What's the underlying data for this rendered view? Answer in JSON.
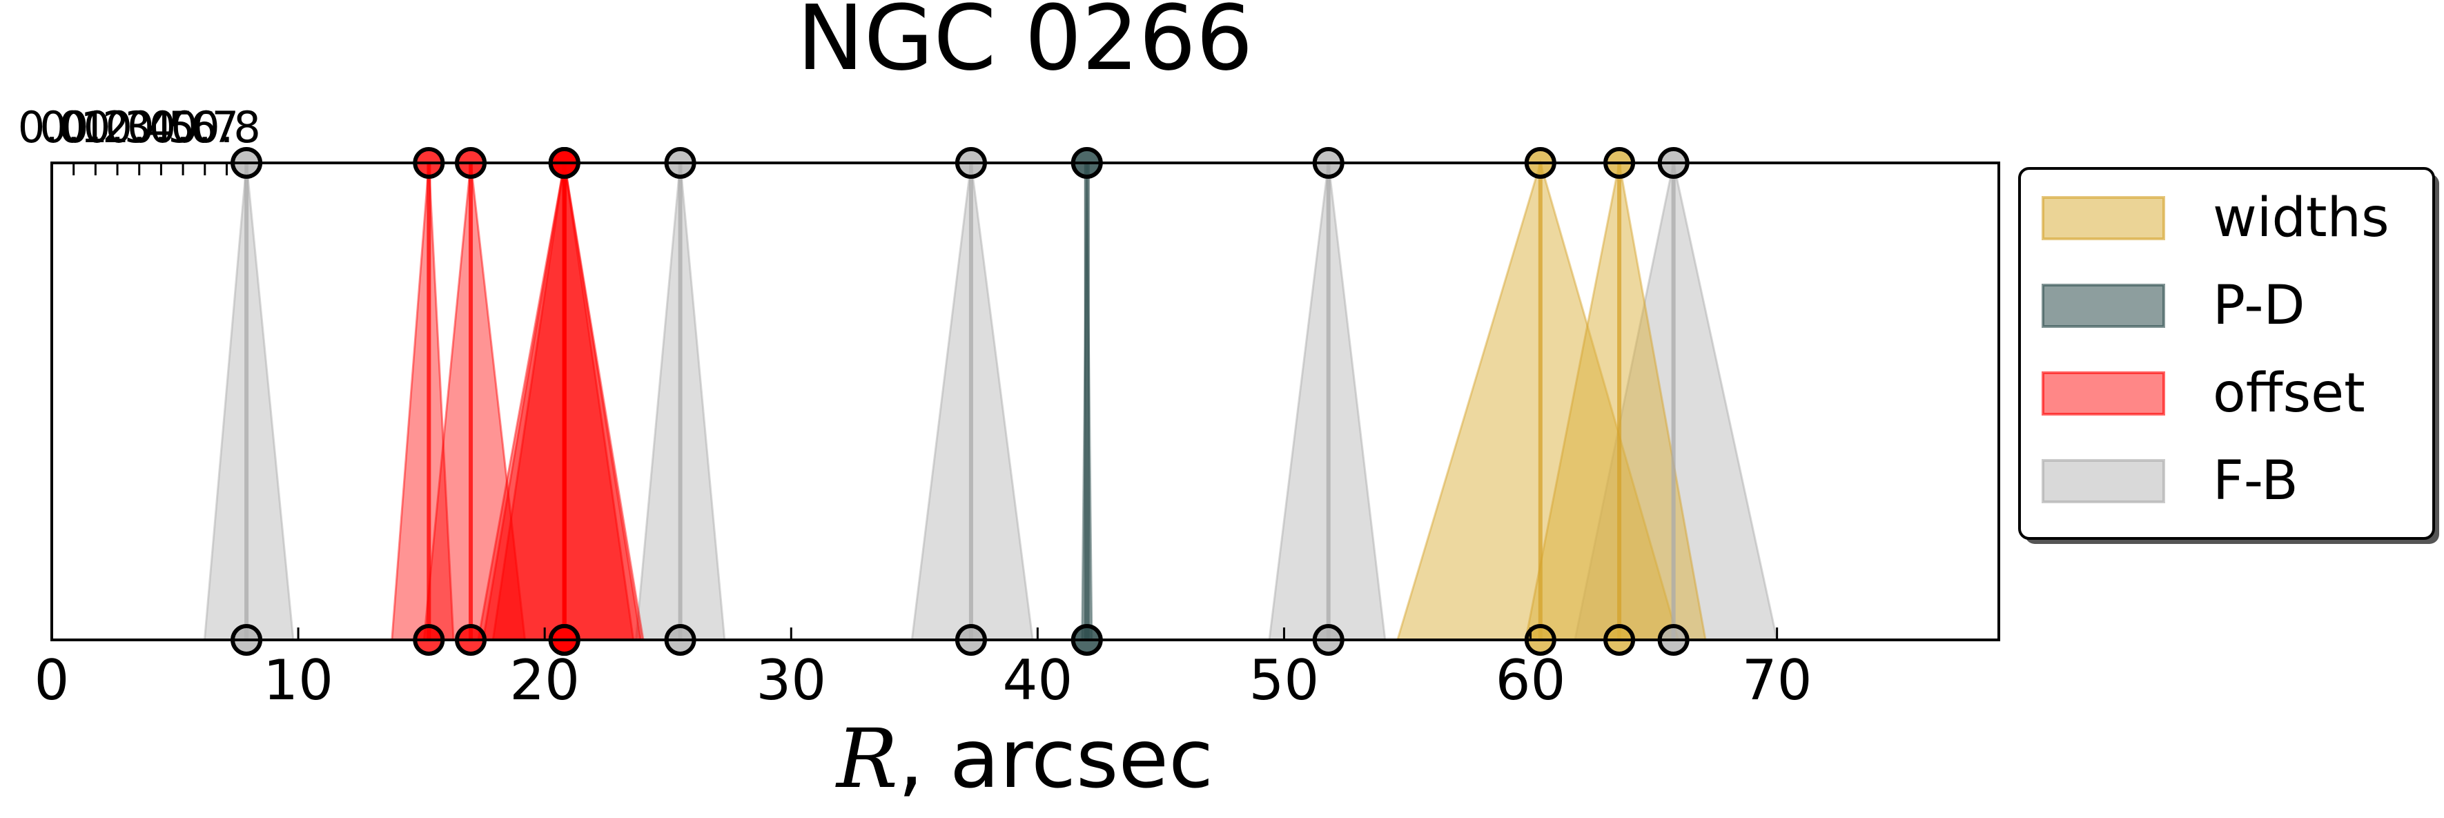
{
  "chart_data": {
    "type": "line",
    "title": "NGC 0266",
    "xlabel_symbol": "R",
    "xlabel_rest": ", arcsec",
    "xlim": [
      0,
      79
    ],
    "bottom_ticks": [
      0,
      10,
      20,
      30,
      40,
      50,
      60,
      70
    ],
    "top_axis_scale": 0.1127,
    "top_ticks": [
      "0.0",
      "0.1",
      "0.2",
      "0.3",
      "0.4",
      "0.5",
      "0.6",
      "0.7",
      "0.8"
    ],
    "grid": false,
    "legend_placement": "outside-right-top",
    "series": [
      {
        "name": "widths",
        "fill": "#dbb13f",
        "line": "#d4a22a",
        "items": [
          {
            "center": 60.4,
            "left": 54.6,
            "right": 66.0
          },
          {
            "center": 63.6,
            "left": 59.8,
            "right": 67.1
          }
        ]
      },
      {
        "name": "P-D",
        "fill": "#2f4f4f",
        "line": "#2f4f4f",
        "items": [
          {
            "center": 42.0,
            "left": 41.8,
            "right": 42.2
          }
        ]
      },
      {
        "name": "offset",
        "fill": "#ff0000",
        "line": "#ff0000",
        "items": [
          {
            "center": 15.3,
            "left": 13.8,
            "right": 16.3
          },
          {
            "center": 17.0,
            "left": 15.1,
            "right": 19.2
          },
          {
            "center": 20.8,
            "left": 17.3,
            "right": 24.0
          },
          {
            "center": 20.8,
            "left": 17.5,
            "right": 23.6
          },
          {
            "center": 20.8,
            "left": 17.9,
            "right": 23.9
          }
        ]
      },
      {
        "name": "F-B",
        "fill": "#b3b3b3",
        "line": "#a9a9a9",
        "items": [
          {
            "center": 7.9,
            "left": 6.2,
            "right": 9.8
          },
          {
            "center": 25.5,
            "left": 23.7,
            "right": 27.3
          },
          {
            "center": 37.3,
            "left": 34.9,
            "right": 39.8
          },
          {
            "center": 51.8,
            "left": 49.4,
            "right": 54.1
          },
          {
            "center": 65.8,
            "left": 61.8,
            "right": 70.0
          }
        ]
      }
    ]
  }
}
